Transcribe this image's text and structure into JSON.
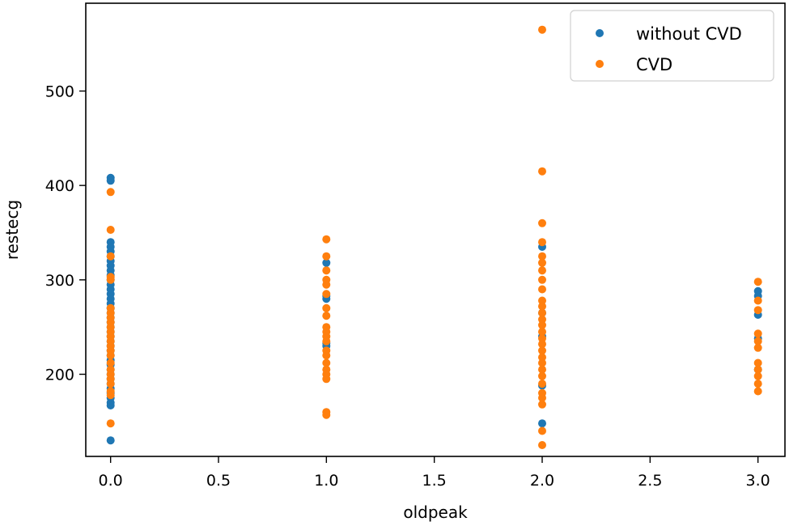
{
  "chart_data": {
    "type": "scatter",
    "title": "",
    "xlabel": "oldpeak",
    "ylabel": "restecg",
    "xlim": [
      -0.115,
      3.125
    ],
    "ylim": [
      113,
      593
    ],
    "grid": false,
    "legend_position": "upper right",
    "x_ticks": [
      0.0,
      0.5,
      1.0,
      1.5,
      2.0,
      2.5,
      3.0
    ],
    "x_tick_labels": [
      "0.0",
      "0.5",
      "1.0",
      "1.5",
      "2.0",
      "2.5",
      "3.0"
    ],
    "y_ticks": [
      200,
      300,
      400,
      500
    ],
    "y_tick_labels": [
      "200",
      "300",
      "400",
      "500"
    ],
    "series": [
      {
        "name": "without CVD",
        "color": "#1f77b4",
        "points": [
          [
            0.0,
            408
          ],
          [
            0.0,
            405
          ],
          [
            0.0,
            340
          ],
          [
            0.0,
            335
          ],
          [
            0.0,
            330
          ],
          [
            0.0,
            325
          ],
          [
            0.0,
            320
          ],
          [
            0.0,
            315
          ],
          [
            0.0,
            310
          ],
          [
            0.0,
            305
          ],
          [
            0.0,
            300
          ],
          [
            0.0,
            295
          ],
          [
            0.0,
            290
          ],
          [
            0.0,
            285
          ],
          [
            0.0,
            280
          ],
          [
            0.0,
            275
          ],
          [
            0.0,
            270
          ],
          [
            0.0,
            265
          ],
          [
            0.0,
            260
          ],
          [
            0.0,
            255
          ],
          [
            0.0,
            250
          ],
          [
            0.0,
            245
          ],
          [
            0.0,
            240
          ],
          [
            0.0,
            235
          ],
          [
            0.0,
            230
          ],
          [
            0.0,
            225
          ],
          [
            0.0,
            220
          ],
          [
            0.0,
            215
          ],
          [
            0.0,
            210
          ],
          [
            0.0,
            205
          ],
          [
            0.0,
            200
          ],
          [
            0.0,
            195
          ],
          [
            0.0,
            190
          ],
          [
            0.0,
            185
          ],
          [
            0.0,
            180
          ],
          [
            0.0,
            175
          ],
          [
            0.0,
            170
          ],
          [
            0.0,
            167
          ],
          [
            0.0,
            130
          ],
          [
            1.0,
            318
          ],
          [
            1.0,
            283
          ],
          [
            1.0,
            280
          ],
          [
            1.0,
            233
          ],
          [
            1.0,
            230
          ],
          [
            2.0,
            335
          ],
          [
            2.0,
            265
          ],
          [
            2.0,
            240
          ],
          [
            2.0,
            188
          ],
          [
            2.0,
            148
          ],
          [
            3.0,
            288
          ],
          [
            3.0,
            283
          ],
          [
            3.0,
            263
          ],
          [
            3.0,
            238
          ],
          [
            3.0,
            205
          ]
        ]
      },
      {
        "name": "CVD",
        "color": "#ff7f0e",
        "points": [
          [
            0.0,
            393
          ],
          [
            0.0,
            353
          ],
          [
            0.0,
            325
          ],
          [
            0.0,
            303
          ],
          [
            0.0,
            300
          ],
          [
            0.0,
            270
          ],
          [
            0.0,
            265
          ],
          [
            0.0,
            260
          ],
          [
            0.0,
            255
          ],
          [
            0.0,
            250
          ],
          [
            0.0,
            245
          ],
          [
            0.0,
            240
          ],
          [
            0.0,
            235
          ],
          [
            0.0,
            230
          ],
          [
            0.0,
            225
          ],
          [
            0.0,
            220
          ],
          [
            0.0,
            212
          ],
          [
            0.0,
            205
          ],
          [
            0.0,
            200
          ],
          [
            0.0,
            195
          ],
          [
            0.0,
            190
          ],
          [
            0.0,
            182
          ],
          [
            0.0,
            178
          ],
          [
            0.0,
            148
          ],
          [
            1.0,
            343
          ],
          [
            1.0,
            325
          ],
          [
            1.0,
            310
          ],
          [
            1.0,
            300
          ],
          [
            1.0,
            295
          ],
          [
            1.0,
            285
          ],
          [
            1.0,
            270
          ],
          [
            1.0,
            262
          ],
          [
            1.0,
            250
          ],
          [
            1.0,
            245
          ],
          [
            1.0,
            240
          ],
          [
            1.0,
            235
          ],
          [
            1.0,
            225
          ],
          [
            1.0,
            220
          ],
          [
            1.0,
            212
          ],
          [
            1.0,
            205
          ],
          [
            1.0,
            200
          ],
          [
            1.0,
            195
          ],
          [
            1.0,
            160
          ],
          [
            1.0,
            157
          ],
          [
            2.0,
            565
          ],
          [
            2.0,
            415
          ],
          [
            2.0,
            360
          ],
          [
            2.0,
            340
          ],
          [
            2.0,
            325
          ],
          [
            2.0,
            318
          ],
          [
            2.0,
            310
          ],
          [
            2.0,
            300
          ],
          [
            2.0,
            290
          ],
          [
            2.0,
            278
          ],
          [
            2.0,
            272
          ],
          [
            2.0,
            265
          ],
          [
            2.0,
            258
          ],
          [
            2.0,
            252
          ],
          [
            2.0,
            245
          ],
          [
            2.0,
            238
          ],
          [
            2.0,
            232
          ],
          [
            2.0,
            225
          ],
          [
            2.0,
            218
          ],
          [
            2.0,
            212
          ],
          [
            2.0,
            205
          ],
          [
            2.0,
            198
          ],
          [
            2.0,
            190
          ],
          [
            2.0,
            180
          ],
          [
            2.0,
            175
          ],
          [
            2.0,
            168
          ],
          [
            2.0,
            140
          ],
          [
            2.0,
            125
          ],
          [
            3.0,
            298
          ],
          [
            3.0,
            278
          ],
          [
            3.0,
            268
          ],
          [
            3.0,
            243
          ],
          [
            3.0,
            235
          ],
          [
            3.0,
            228
          ],
          [
            3.0,
            212
          ],
          [
            3.0,
            205
          ],
          [
            3.0,
            198
          ],
          [
            3.0,
            190
          ],
          [
            3.0,
            182
          ]
        ]
      }
    ]
  },
  "legend": {
    "items": [
      {
        "label": "without CVD",
        "color": "#1f77b4"
      },
      {
        "label": "CVD",
        "color": "#ff7f0e"
      }
    ]
  },
  "axes": {
    "xlabel": "oldpeak",
    "ylabel": "restecg"
  }
}
